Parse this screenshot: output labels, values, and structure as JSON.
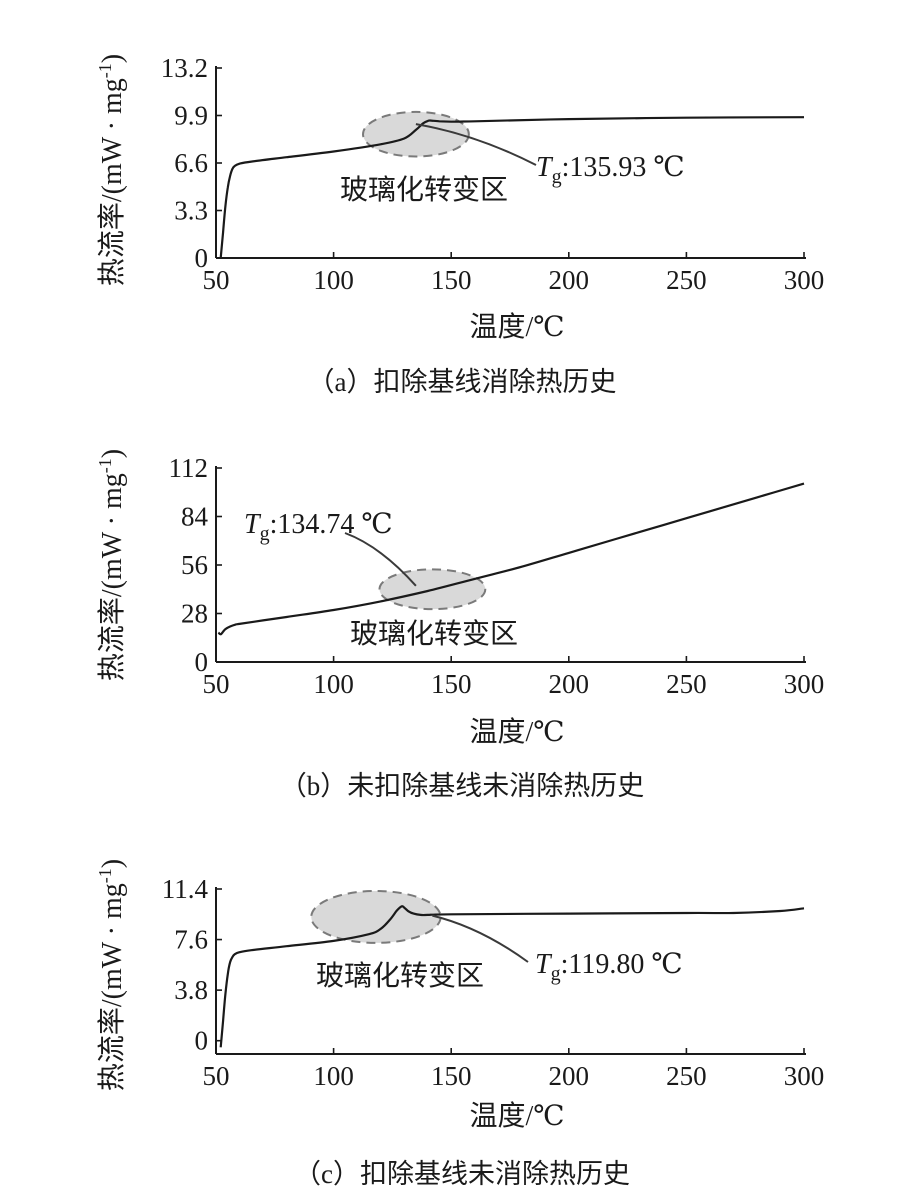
{
  "chart_data": [
    {
      "id": "a",
      "type": "line",
      "caption": "（a）扣除基线消除热历史",
      "xlabel": "温度/℃",
      "ylabel_main": "热流率/(mW · mg",
      "ylabel_sup": "-1",
      "ylabel_close": ")",
      "xlim": [
        50,
        300
      ],
      "ylim": [
        0,
        13.2
      ],
      "x_ticks": [
        50,
        100,
        150,
        200,
        250,
        300
      ],
      "y_ticks": [
        0,
        3.3,
        6.6,
        9.9,
        13.2
      ],
      "y_tick_labels": [
        "0",
        "3.3",
        "6.6",
        "9.9",
        "13.2"
      ],
      "series": [
        {
          "x": [
            52,
            53,
            54,
            55,
            56,
            57,
            58,
            60,
            65,
            80,
            100,
            120,
            130,
            135,
            138,
            140,
            141,
            145,
            150,
            160,
            200,
            250,
            300
          ],
          "y": [
            0,
            1.8,
            3.6,
            4.9,
            5.7,
            6.2,
            6.4,
            6.55,
            6.7,
            7.0,
            7.4,
            7.9,
            8.3,
            8.9,
            9.35,
            9.52,
            9.55,
            9.5,
            9.47,
            9.5,
            9.65,
            9.75,
            9.78
          ]
        }
      ],
      "region": {
        "x": 135,
        "y": 8.6,
        "rx": 22.5,
        "ry": 1.55,
        "label": "玻璃化转变区"
      },
      "tg": {
        "prefix": "T",
        "sub": "g",
        "text": ":135.93 ℃"
      }
    },
    {
      "id": "b",
      "type": "line",
      "caption": "（b）未扣除基线未消除热历史",
      "xlabel": "温度/℃",
      "ylabel_main": "热流率/(mW · mg",
      "ylabel_sup": "-1",
      "ylabel_close": ")",
      "xlim": [
        50,
        300
      ],
      "ylim": [
        0,
        112
      ],
      "x_ticks": [
        50,
        100,
        150,
        200,
        250,
        300
      ],
      "y_ticks": [
        0,
        28,
        56,
        84,
        112
      ],
      "y_tick_labels": [
        "0",
        "28",
        "56",
        "84",
        "112"
      ],
      "series": [
        {
          "x": [
            51,
            52,
            53,
            54,
            56,
            58,
            60,
            70,
            80,
            100,
            120,
            140,
            160,
            180,
            200,
            220,
            240,
            260,
            280,
            300
          ],
          "y": [
            17,
            16,
            17.5,
            19,
            20.5,
            21.5,
            22,
            24,
            26,
            30,
            35,
            41,
            48,
            55,
            63,
            71,
            79,
            87,
            95,
            103
          ]
        }
      ],
      "region": {
        "x": 142,
        "y": 42,
        "rx": 22.5,
        "ry": 11.5,
        "label": "玻璃化转变区"
      },
      "tg": {
        "prefix": "T",
        "sub": "g",
        "text": ":134.74 ℃"
      }
    },
    {
      "id": "c",
      "type": "line",
      "caption": "（c）扣除基线未消除热历史",
      "xlabel": "温度/℃",
      "ylabel_main": "热流率/(mW · mg",
      "ylabel_sup": "-1",
      "ylabel_close": ")",
      "xlim": [
        50,
        300
      ],
      "ylim": [
        -1,
        11.4
      ],
      "x_ticks": [
        50,
        100,
        150,
        200,
        250,
        300
      ],
      "y_ticks": [
        0,
        3.8,
        7.6,
        11.4
      ],
      "y_tick_labels": [
        "0",
        "3.8",
        "7.6",
        "11.4"
      ],
      "series": [
        {
          "x": [
            52,
            53,
            54,
            55,
            56,
            57,
            58,
            60,
            65,
            80,
            100,
            115,
            120,
            124,
            127,
            129,
            130,
            132,
            134,
            137,
            140,
            150,
            200,
            250,
            270,
            290,
            300
          ],
          "y": [
            -0.5,
            1.5,
            3.5,
            5.0,
            5.9,
            6.3,
            6.5,
            6.65,
            6.8,
            7.1,
            7.5,
            8.0,
            8.4,
            9.1,
            9.8,
            10.1,
            10.0,
            9.7,
            9.55,
            9.45,
            9.45,
            9.5,
            9.55,
            9.6,
            9.6,
            9.75,
            9.95
          ]
        }
      ],
      "region": {
        "x": 118,
        "y": 9.3,
        "rx": 27.5,
        "ry": 1.95,
        "label": "玻璃化转变区"
      },
      "tg": {
        "prefix": "T",
        "sub": "g",
        "text": ":119.80 ℃"
      }
    }
  ]
}
